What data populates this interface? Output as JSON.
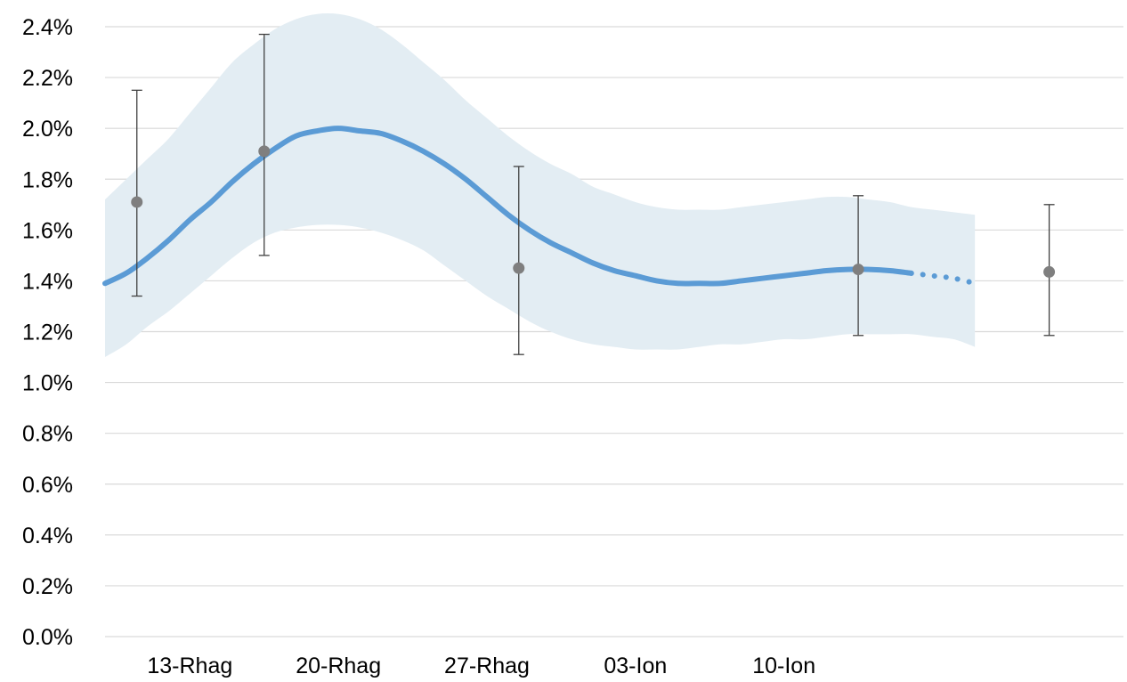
{
  "chart_data": {
    "type": "line",
    "title": "",
    "xlabel": "",
    "ylabel": "",
    "x_ticks": [
      {
        "label": "13-Rhag",
        "day": 13
      },
      {
        "label": "20-Rhag",
        "day": 20
      },
      {
        "label": "27-Rhag",
        "day": 27
      },
      {
        "label": "03-Ion",
        "day": 34
      },
      {
        "label": "10-Ion",
        "day": 41
      }
    ],
    "y_ticks": [
      "0.0%",
      "0.2%",
      "0.4%",
      "0.6%",
      "0.8%",
      "1.0%",
      "1.2%",
      "1.4%",
      "1.6%",
      "1.8%",
      "2.0%",
      "2.2%",
      "2.4%"
    ],
    "xlim": [
      9,
      57
    ],
    "ylim": [
      0,
      2.4
    ],
    "grid": true,
    "legend": "none",
    "colors": {
      "line": "#5b9bd5",
      "band": "#e3edf3",
      "point": "#7f7f7f",
      "errorbar": "#404040",
      "grid": "#d9d9d9"
    },
    "series": [
      {
        "style": "solid line",
        "points": [
          [
            9,
            1.39
          ],
          [
            10,
            1.43
          ],
          [
            11,
            1.49
          ],
          [
            12,
            1.56
          ],
          [
            13,
            1.64
          ],
          [
            14,
            1.71
          ],
          [
            15,
            1.79
          ],
          [
            16,
            1.86
          ],
          [
            17,
            1.92
          ],
          [
            18,
            1.97
          ],
          [
            19,
            1.99
          ],
          [
            20,
            2.0
          ],
          [
            21,
            1.99
          ],
          [
            22,
            1.98
          ],
          [
            23,
            1.95
          ],
          [
            24,
            1.91
          ],
          [
            25,
            1.86
          ],
          [
            26,
            1.8
          ],
          [
            27,
            1.73
          ],
          [
            28,
            1.66
          ],
          [
            29,
            1.6
          ],
          [
            30,
            1.55
          ],
          [
            31,
            1.51
          ],
          [
            32,
            1.47
          ],
          [
            33,
            1.44
          ],
          [
            34,
            1.42
          ],
          [
            35,
            1.4
          ],
          [
            36,
            1.39
          ],
          [
            37,
            1.39
          ],
          [
            38,
            1.39
          ],
          [
            39,
            1.4
          ],
          [
            40,
            1.41
          ],
          [
            41,
            1.42
          ],
          [
            42,
            1.43
          ],
          [
            43,
            1.44
          ],
          [
            44,
            1.445
          ],
          [
            45,
            1.445
          ],
          [
            46,
            1.44
          ],
          [
            47,
            1.43
          ]
        ]
      },
      {
        "style": "dotted line",
        "points": [
          [
            47,
            1.43
          ],
          [
            48,
            1.42
          ],
          [
            49,
            1.41
          ],
          [
            50,
            1.39
          ]
        ]
      },
      {
        "style": "shaded band",
        "upper": [
          [
            9,
            1.72
          ],
          [
            10,
            1.8
          ],
          [
            11,
            1.88
          ],
          [
            12,
            1.96
          ],
          [
            13,
            2.06
          ],
          [
            14,
            2.16
          ],
          [
            15,
            2.26
          ],
          [
            16,
            2.33
          ],
          [
            17,
            2.39
          ],
          [
            18,
            2.43
          ],
          [
            19,
            2.45
          ],
          [
            20,
            2.45
          ],
          [
            21,
            2.43
          ],
          [
            22,
            2.39
          ],
          [
            23,
            2.33
          ],
          [
            24,
            2.26
          ],
          [
            25,
            2.19
          ],
          [
            26,
            2.11
          ],
          [
            27,
            2.04
          ],
          [
            28,
            1.97
          ],
          [
            29,
            1.91
          ],
          [
            30,
            1.86
          ],
          [
            31,
            1.82
          ],
          [
            32,
            1.77
          ],
          [
            33,
            1.74
          ],
          [
            34,
            1.71
          ],
          [
            35,
            1.69
          ],
          [
            36,
            1.68
          ],
          [
            37,
            1.68
          ],
          [
            38,
            1.68
          ],
          [
            39,
            1.69
          ],
          [
            40,
            1.7
          ],
          [
            41,
            1.71
          ],
          [
            42,
            1.72
          ],
          [
            43,
            1.73
          ],
          [
            44,
            1.73
          ],
          [
            45,
            1.72
          ],
          [
            46,
            1.71
          ],
          [
            47,
            1.69
          ],
          [
            48,
            1.68
          ],
          [
            49,
            1.67
          ],
          [
            50,
            1.66
          ]
        ],
        "lower": [
          [
            9,
            1.1
          ],
          [
            10,
            1.15
          ],
          [
            11,
            1.22
          ],
          [
            12,
            1.28
          ],
          [
            13,
            1.35
          ],
          [
            14,
            1.42
          ],
          [
            15,
            1.49
          ],
          [
            16,
            1.55
          ],
          [
            17,
            1.59
          ],
          [
            18,
            1.61
          ],
          [
            19,
            1.62
          ],
          [
            20,
            1.62
          ],
          [
            21,
            1.61
          ],
          [
            22,
            1.59
          ],
          [
            23,
            1.56
          ],
          [
            24,
            1.52
          ],
          [
            25,
            1.46
          ],
          [
            26,
            1.4
          ],
          [
            27,
            1.34
          ],
          [
            28,
            1.29
          ],
          [
            29,
            1.24
          ],
          [
            30,
            1.2
          ],
          [
            31,
            1.17
          ],
          [
            32,
            1.15
          ],
          [
            33,
            1.14
          ],
          [
            34,
            1.13
          ],
          [
            35,
            1.13
          ],
          [
            36,
            1.13
          ],
          [
            37,
            1.14
          ],
          [
            38,
            1.15
          ],
          [
            39,
            1.15
          ],
          [
            40,
            1.16
          ],
          [
            41,
            1.17
          ],
          [
            42,
            1.17
          ],
          [
            43,
            1.18
          ],
          [
            44,
            1.19
          ],
          [
            45,
            1.19
          ],
          [
            46,
            1.19
          ],
          [
            47,
            1.19
          ],
          [
            48,
            1.18
          ],
          [
            49,
            1.17
          ],
          [
            50,
            1.14
          ]
        ]
      },
      {
        "style": "points with error bars",
        "points": [
          {
            "x": 10.5,
            "y": 1.71,
            "low": 1.34,
            "high": 2.15
          },
          {
            "x": 16.5,
            "y": 1.91,
            "low": 1.5,
            "high": 2.37
          },
          {
            "x": 28.5,
            "y": 1.45,
            "low": 1.11,
            "high": 1.85
          },
          {
            "x": 44.5,
            "y": 1.445,
            "low": 1.185,
            "high": 1.735
          },
          {
            "x": 53.5,
            "y": 1.435,
            "low": 1.185,
            "high": 1.7
          }
        ]
      }
    ]
  }
}
